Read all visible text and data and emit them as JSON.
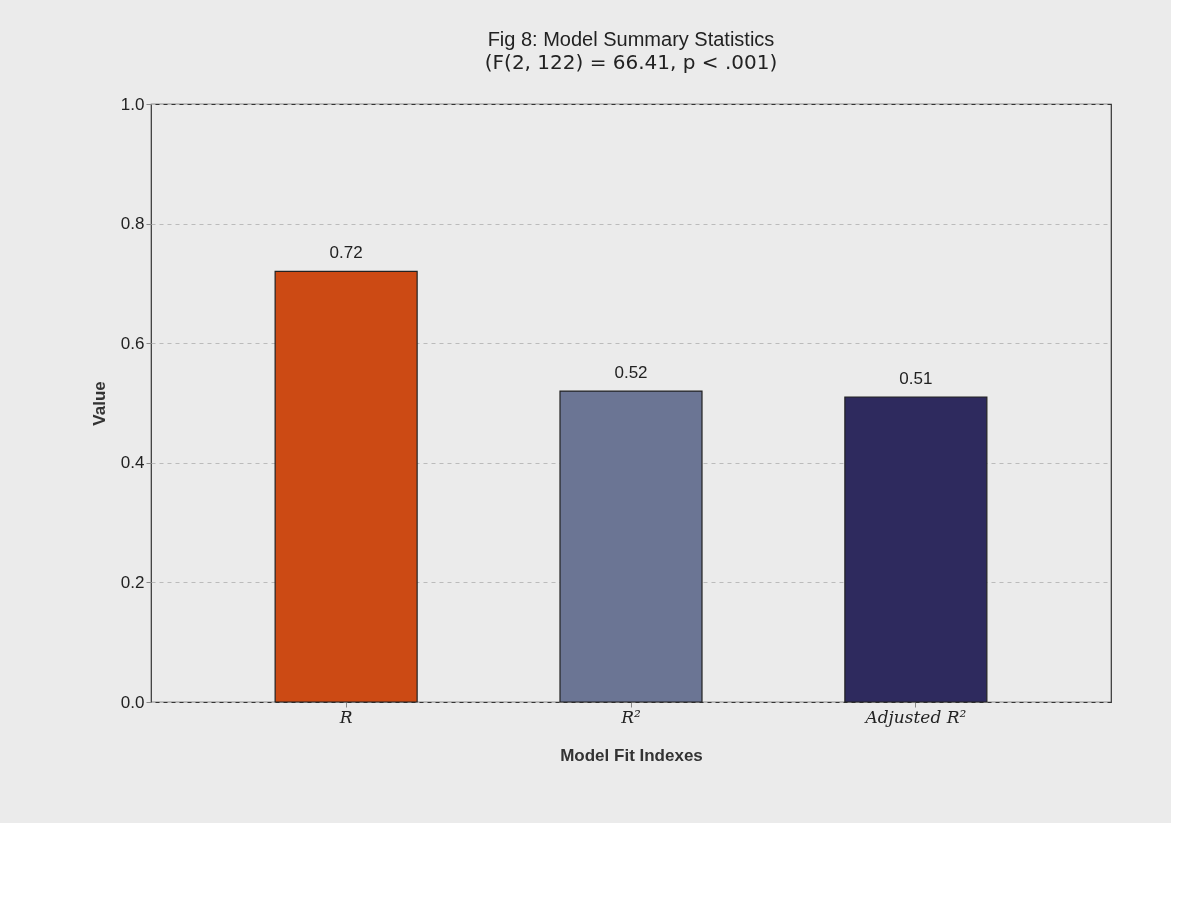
{
  "chart_data": {
    "type": "bar",
    "title": "Fig 8: Model Summary Statistics",
    "subtitle": "(F(2, 122) = 66.41, p < .001)",
    "xlabel": "Model Fit Indexes",
    "ylabel": "Value",
    "categories": [
      "R",
      "R²",
      "Adjusted R²"
    ],
    "values": [
      0.72,
      0.52,
      0.51
    ],
    "colors": [
      "#cc4a14",
      "#6b7594",
      "#2e2a5e"
    ],
    "data_labels": true,
    "ylim": [
      0,
      1.0
    ],
    "yticks": [
      {
        "value": 0,
        "label": "0.0"
      },
      {
        "value": 0.2,
        "label": "0.2"
      },
      {
        "value": 0.4,
        "label": "0.4"
      },
      {
        "value": 0.6,
        "label": "0.6"
      },
      {
        "value": 0.8,
        "label": "0.8"
      },
      {
        "value": 1.0,
        "label": "1.0"
      }
    ],
    "grid": "y"
  }
}
